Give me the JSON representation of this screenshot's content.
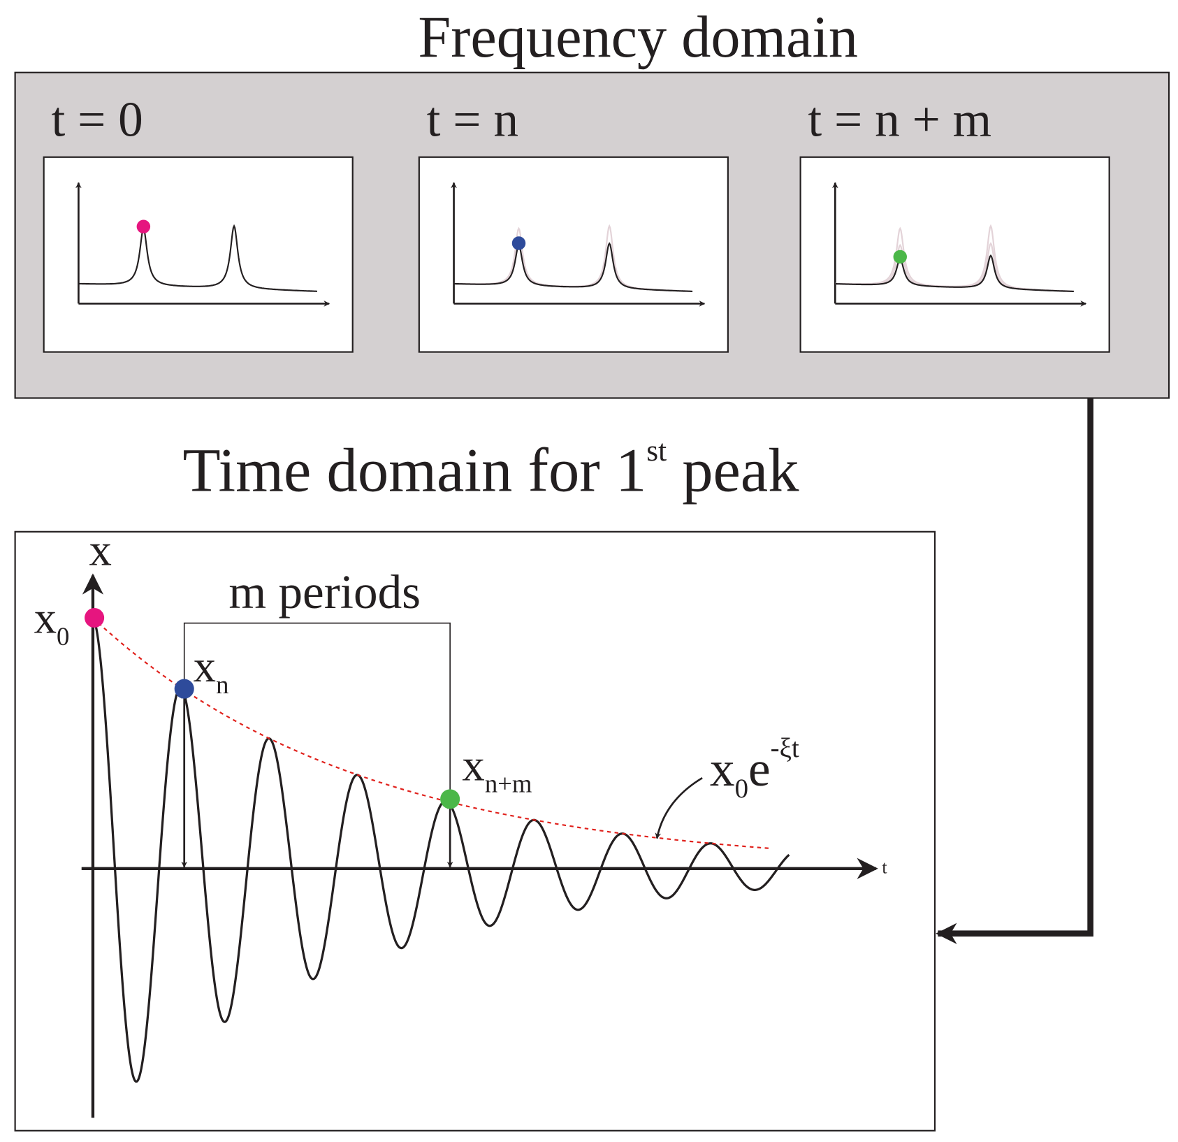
{
  "frequency_domain": {
    "title": "Frequency domain",
    "panels": [
      {
        "label": "t = 0"
      },
      {
        "label": "t = n"
      },
      {
        "label": "t = n + m"
      }
    ]
  },
  "time_domain": {
    "title": {
      "main": "Time domain for 1",
      "sup": "st",
      "end": " peak"
    },
    "y_axis": "x",
    "x_axis": "t",
    "bracket": "m periods",
    "points": [
      {
        "base": "x",
        "sub": "0"
      },
      {
        "base": "x",
        "sub": "n"
      },
      {
        "base": "x",
        "sub": "n+m"
      }
    ],
    "envelope": {
      "base": "x",
      "sub": "0",
      "mid": "e",
      "sup": "-ξt"
    }
  }
}
